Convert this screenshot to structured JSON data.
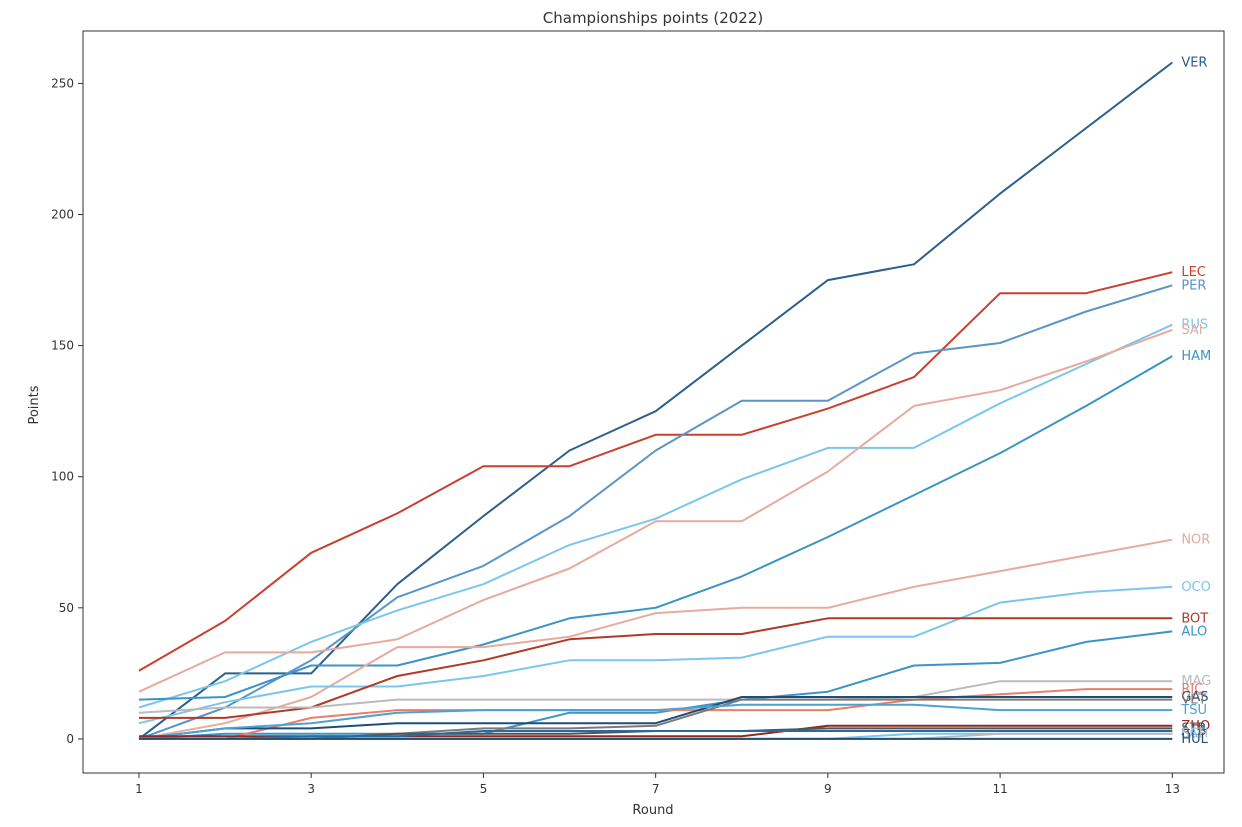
{
  "chart_data": {
    "type": "line",
    "title": "Championships points (2022)",
    "xlabel": "Round",
    "ylabel": "Points",
    "x": [
      1,
      2,
      3,
      4,
      5,
      6,
      7,
      8,
      9,
      10,
      11,
      12,
      13
    ],
    "xticks": [
      1,
      3,
      5,
      7,
      9,
      11,
      13
    ],
    "yticks": [
      0,
      50,
      100,
      150,
      200,
      250
    ],
    "xlim": [
      0.35,
      13.6
    ],
    "ylim": [
      -13,
      270
    ],
    "grid": false,
    "legend": "none",
    "series": [
      {
        "name": "VER",
        "color": "#2b5f8e",
        "values": [
          0,
          25,
          25,
          59,
          85,
          110,
          125,
          150,
          175,
          181,
          208,
          233,
          258
        ]
      },
      {
        "name": "LEC",
        "color": "#c9402f",
        "values": [
          26,
          45,
          71,
          86,
          104,
          104,
          116,
          116,
          126,
          138,
          170,
          170,
          178
        ]
      },
      {
        "name": "PER",
        "color": "#5b95c8",
        "values": [
          0,
          12,
          30,
          54,
          66,
          85,
          110,
          129,
          129,
          147,
          151,
          163,
          173
        ]
      },
      {
        "name": "RUS",
        "color": "#7bc6ec",
        "values": [
          12,
          22,
          37,
          49,
          59,
          74,
          84,
          99,
          111,
          111,
          128,
          143,
          158
        ]
      },
      {
        "name": "SAI",
        "color": "#e8aa9c",
        "values": [
          18,
          33,
          33,
          38,
          53,
          65,
          83,
          83,
          102,
          127,
          133,
          144,
          156
        ]
      },
      {
        "name": "HAM",
        "color": "#3c94c4",
        "values": [
          15,
          16,
          28,
          28,
          36,
          46,
          50,
          62,
          77,
          93,
          109,
          127,
          146
        ]
      },
      {
        "name": "NOR",
        "color": "#e6ab9d",
        "values": [
          0,
          6,
          16,
          35,
          35,
          39,
          48,
          50,
          50,
          58,
          64,
          70,
          76
        ]
      },
      {
        "name": "OCO",
        "color": "#7bc6ec",
        "values": [
          6,
          14,
          20,
          20,
          24,
          30,
          30,
          31,
          39,
          39,
          52,
          56,
          58
        ]
      },
      {
        "name": "BOT",
        "color": "#b03a2a",
        "values": [
          8,
          8,
          12,
          24,
          30,
          38,
          40,
          40,
          46,
          46,
          46,
          46,
          46
        ]
      },
      {
        "name": "ALO",
        "color": "#3c94c4",
        "values": [
          0,
          2,
          2,
          2,
          2,
          10,
          10,
          15,
          18,
          28,
          29,
          37,
          41
        ]
      },
      {
        "name": "MAG",
        "color": "#bbbbbb",
        "values": [
          10,
          12,
          12,
          15,
          15,
          15,
          15,
          15,
          15,
          16,
          22,
          22,
          22
        ]
      },
      {
        "name": "RIC",
        "color": "#e87e6c",
        "values": [
          0,
          0,
          8,
          11,
          11,
          11,
          11,
          11,
          11,
          15,
          17,
          19,
          19
        ]
      },
      {
        "name": "GAS",
        "color": "#1f4e78",
        "values": [
          0,
          4,
          4,
          6,
          6,
          6,
          6,
          16,
          16,
          16,
          16,
          16,
          16
        ]
      },
      {
        "name": "VET",
        "color": "#7a7a7a",
        "values": [
          0,
          0,
          0,
          2,
          4,
          4,
          5,
          15,
          15,
          15,
          15,
          15,
          15
        ]
      },
      {
        "name": "TSU",
        "color": "#4ea1d3",
        "values": [
          0,
          4,
          6,
          10,
          11,
          11,
          11,
          13,
          13,
          13,
          11,
          11,
          11
        ]
      },
      {
        "name": "ZHO",
        "color": "#8e2a1f",
        "values": [
          1,
          1,
          1,
          1,
          1,
          1,
          1,
          1,
          5,
          5,
          5,
          5,
          5
        ]
      },
      {
        "name": "STR",
        "color": "#555555",
        "values": [
          0,
          0,
          0,
          2,
          2,
          2,
          3,
          3,
          4,
          4,
          4,
          4,
          4
        ]
      },
      {
        "name": "ALB",
        "color": "#2b6aa0",
        "values": [
          0,
          0,
          1,
          1,
          3,
          3,
          3,
          3,
          3,
          3,
          3,
          3,
          3
        ]
      },
      {
        "name": "LAT",
        "color": "#7bc6ec",
        "values": [
          0,
          0,
          0,
          0,
          0,
          0,
          0,
          0,
          0,
          2,
          2,
          2,
          2
        ]
      },
      {
        "name": "SCH",
        "color": "#bbbbbb",
        "values": [
          0,
          0,
          0,
          0,
          0,
          0,
          0,
          0,
          0,
          0,
          2,
          2,
          2
        ]
      },
      {
        "name": "HUL",
        "color": "#1f4e78",
        "values": [
          0,
          0,
          0,
          0,
          0,
          0,
          0,
          0,
          0,
          0,
          0,
          0,
          0
        ]
      }
    ]
  }
}
